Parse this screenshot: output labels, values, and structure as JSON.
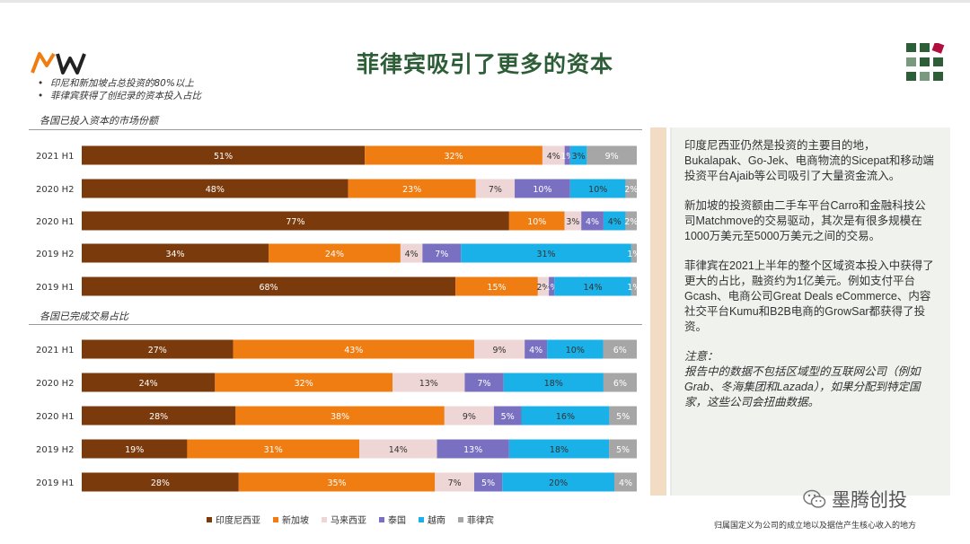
{
  "header": {
    "logo_text": "MW",
    "title": "菲律宾吸引了更多的资本",
    "bullets": [
      "印尼和新加坡占总投资的80%以上",
      "菲律宾获得了创纪录的资本投入占比"
    ]
  },
  "colors": {
    "indonesia": "#7b3a0c",
    "singapore": "#f07d12",
    "malaysia": "#efd6d6",
    "thailand": "#7a70c2",
    "vietnam": "#1ab0e8",
    "philippines": "#a6a6a6",
    "title": "#2e5e37"
  },
  "chart_data": [
    {
      "type": "bar",
      "orientation": "horizontal-stacked",
      "title": "各国已投入资本的市场份额",
      "categories": [
        "2021 H1",
        "2020 H2",
        "2020 H1",
        "2019 H2",
        "2019 H1"
      ],
      "series": [
        {
          "name": "印度尼西亚",
          "values": [
            51,
            48,
            77,
            34,
            68
          ],
          "labels": [
            "51%",
            "48%",
            "77%",
            "34%",
            "68%"
          ]
        },
        {
          "name": "新加坡",
          "values": [
            32,
            23,
            10,
            24,
            15
          ],
          "labels": [
            "32%",
            "23%",
            "10%",
            "24%",
            "15%"
          ]
        },
        {
          "name": "马来西亚",
          "values": [
            4,
            7,
            3,
            4,
            2
          ],
          "labels": [
            "4%",
            "7%",
            "3%",
            "4%",
            "2%"
          ]
        },
        {
          "name": "泰国",
          "values": [
            1,
            10,
            4,
            7,
            1
          ],
          "labels": [
            "1%",
            "10%",
            "4%",
            "7%",
            "1%"
          ]
        },
        {
          "name": "越南",
          "values": [
            3,
            10,
            4,
            31,
            14
          ],
          "labels": [
            "3%",
            "10%",
            "4%",
            "31%",
            "14%"
          ]
        },
        {
          "name": "菲律宾",
          "values": [
            9,
            2,
            2,
            1,
            1
          ],
          "labels": [
            "9%",
            "2%",
            "2%",
            "1%",
            "1%"
          ]
        }
      ]
    },
    {
      "type": "bar",
      "orientation": "horizontal-stacked",
      "title": "各国已完成交易占比",
      "categories": [
        "2021 H1",
        "2020 H2",
        "2020 H1",
        "2019 H2",
        "2019 H1"
      ],
      "series": [
        {
          "name": "印度尼西亚",
          "values": [
            27,
            24,
            28,
            19,
            28
          ],
          "labels": [
            "27%",
            "24%",
            "28%",
            "19%",
            "28%"
          ]
        },
        {
          "name": "新加坡",
          "values": [
            43,
            32,
            38,
            31,
            35
          ],
          "labels": [
            "43%",
            "32%",
            "38%",
            "31%",
            "35%"
          ]
        },
        {
          "name": "马来西亚",
          "values": [
            9,
            13,
            9,
            14,
            7
          ],
          "labels": [
            "9%",
            "13%",
            "9%",
            "14%",
            "7%"
          ]
        },
        {
          "name": "泰国",
          "values": [
            4,
            7,
            5,
            13,
            5
          ],
          "labels": [
            "4%",
            "7%",
            "5%",
            "13%",
            "5%"
          ]
        },
        {
          "name": "越南",
          "values": [
            10,
            18,
            16,
            18,
            20
          ],
          "labels": [
            "10%",
            "18%",
            "16%",
            "18%",
            "20%"
          ]
        },
        {
          "name": "菲律宾",
          "values": [
            6,
            6,
            5,
            5,
            4
          ],
          "labels": [
            "6%",
            "6%",
            "5%",
            "5%",
            "4%"
          ]
        }
      ]
    }
  ],
  "legend": [
    "印度尼西亚",
    "新加坡",
    "马来西亚",
    "泰国",
    "越南",
    "菲律宾"
  ],
  "panel": {
    "p1": "印度尼西亚仍然是投资的主要目的地，Bukalapak、Go-Jek、电商物流的Sicepat和移动端投资平台Ajaib等公司吸引了大量资金流入。",
    "p2": "新加坡的投资额由二手车平台Carro和金融科技公司Matchmove的交易驱动，其次是有很多规模在1000万美元至5000万美元之间的交易。",
    "p3": "菲律宾在2021上半年的整个区域资本投入中获得了更大的占比，融资约为1亿美元。例如支付平台Gcash、电商公司Great Deals eCommerce、内容社交平台Kumu和B2B电商的GrowSar都获得了投资。",
    "note_title": "注意：",
    "note": "报告中的数据不包括区域型的互联网公司（例如Grab、冬海集团和Lazada），如果分配到特定国家，这些公司会扭曲数据。"
  },
  "footer": {
    "wechat_label": "墨腾创投",
    "note": "归属国定义为公司的成立地以及据信产生核心收入的地方"
  }
}
